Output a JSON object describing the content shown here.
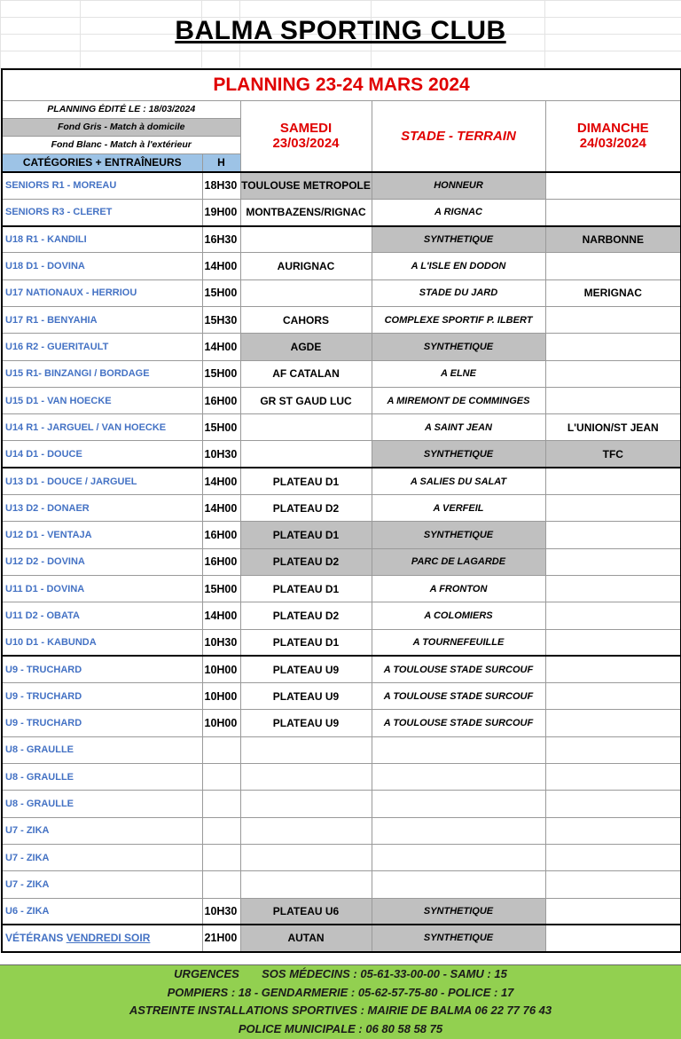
{
  "title": "BALMA SPORTING CLUB",
  "planning_title": "PLANNING 23-24 MARS 2024",
  "edited": "PLANNING ÉDITÉ LE : 18/03/2024",
  "legend_gray": "Fond Gris - Match à domicile",
  "legend_white": "Fond Blanc - Match à l'extérieur",
  "headers": {
    "categories": "CATÉGORIES + ENTRAÎNEURS",
    "time": "H",
    "samedi": "SAMEDI",
    "samedi_date": "23/03/2024",
    "stade": "STADE - TERRAIN",
    "dimanche": "DIMANCHE",
    "dimanche_date": "24/03/2024"
  },
  "colors": {
    "home_gray": "#c0c0c0",
    "header_blue": "#9dc3e6",
    "title_red": "#e00000",
    "category_blue": "#4472c4",
    "footer_green": "#92d050"
  },
  "groups": [
    [
      {
        "category": "SENIORS R1 - MOREAU",
        "time": "18H30",
        "samedi": "TOULOUSE METROPOLE",
        "stade": "HONNEUR",
        "dimanche": "",
        "shade": [
          "samedi",
          "stade"
        ]
      },
      {
        "category": "SENIORS R3 - CLERET",
        "time": "19H00",
        "samedi": "MONTBAZENS/RIGNAC",
        "stade": "A RIGNAC",
        "dimanche": "",
        "shade": []
      }
    ],
    [
      {
        "category": "U18 R1 - KANDILI",
        "time": "16H30",
        "samedi": "",
        "stade": "SYNTHETIQUE",
        "dimanche": "NARBONNE",
        "shade": [
          "stade",
          "dimanche"
        ]
      },
      {
        "category": "U18 D1 - DOVINA",
        "time": "14H00",
        "samedi": "AURIGNAC",
        "stade": "A L'ISLE EN DODON",
        "dimanche": "",
        "shade": []
      },
      {
        "category": "U17 NATIONAUX - HERRIOU",
        "time": "15H00",
        "samedi": "",
        "stade": "STADE DU JARD",
        "dimanche": "MERIGNAC",
        "shade": []
      },
      {
        "category": "U17 R1 - BENYAHIA",
        "time": "15H30",
        "samedi": "CAHORS",
        "stade": "COMPLEXE SPORTIF P. ILBERT",
        "dimanche": "",
        "shade": []
      },
      {
        "category": "U16 R2 - GUERITAULT",
        "time": "14H00",
        "samedi": "AGDE",
        "stade": "SYNTHETIQUE",
        "dimanche": "",
        "shade": [
          "samedi",
          "stade"
        ]
      },
      {
        "category": "U15 R1- BINZANGI / BORDAGE",
        "time": "15H00",
        "samedi": "AF CATALAN",
        "stade": "A ELNE",
        "dimanche": "",
        "shade": []
      },
      {
        "category": "U15 D1 - VAN HOECKE",
        "time": "16H00",
        "samedi": "GR ST GAUD LUC",
        "stade": "A MIREMONT DE COMMINGES",
        "dimanche": "",
        "shade": []
      },
      {
        "category": "U14 R1 - JARGUEL / VAN HOECKE",
        "time": "15H00",
        "samedi": "",
        "stade": "A SAINT JEAN",
        "dimanche": "L'UNION/ST JEAN",
        "shade": []
      },
      {
        "category": "U14 D1 - DOUCE",
        "time": "10H30",
        "samedi": "",
        "stade": "SYNTHETIQUE",
        "dimanche": "TFC",
        "shade": [
          "stade",
          "dimanche"
        ]
      }
    ],
    [
      {
        "category": "U13 D1 - DOUCE / JARGUEL",
        "time": "14H00",
        "samedi": "PLATEAU D1",
        "stade": "A SALIES DU SALAT",
        "dimanche": "",
        "shade": []
      },
      {
        "category": "U13 D2 - DONAER",
        "time": "14H00",
        "samedi": "PLATEAU D2",
        "stade": "A VERFEIL",
        "dimanche": "",
        "shade": []
      },
      {
        "category": "U12 D1 - VENTAJA",
        "time": "16H00",
        "samedi": "PLATEAU D1",
        "stade": "SYNTHETIQUE",
        "dimanche": "",
        "shade": [
          "samedi",
          "stade"
        ]
      },
      {
        "category": "U12 D2 - DOVINA",
        "time": "16H00",
        "samedi": "PLATEAU D2",
        "stade": "PARC DE LAGARDE",
        "dimanche": "",
        "shade": [
          "samedi",
          "stade"
        ]
      },
      {
        "category": "U11 D1 - DOVINA",
        "time": "15H00",
        "samedi": "PLATEAU D1",
        "stade": "A FRONTON",
        "dimanche": "",
        "shade": []
      },
      {
        "category": "U11 D2 - OBATA",
        "time": "14H00",
        "samedi": "PLATEAU D2",
        "stade": "A COLOMIERS",
        "dimanche": "",
        "shade": []
      },
      {
        "category": "U10 D1 - KABUNDA",
        "time": "10H30",
        "samedi": "PLATEAU D1",
        "stade": "A TOURNEFEUILLE",
        "dimanche": "",
        "shade": []
      }
    ],
    [
      {
        "category": "U9 - TRUCHARD",
        "time": "10H00",
        "samedi": "PLATEAU U9",
        "stade": "A TOULOUSE STADE SURCOUF",
        "dimanche": "",
        "shade": []
      },
      {
        "category": "U9 - TRUCHARD",
        "time": "10H00",
        "samedi": "PLATEAU U9",
        "stade": "A TOULOUSE STADE SURCOUF",
        "dimanche": "",
        "shade": []
      },
      {
        "category": "U9 - TRUCHARD",
        "time": "10H00",
        "samedi": "PLATEAU U9",
        "stade": "A TOULOUSE STADE SURCOUF",
        "dimanche": "",
        "shade": []
      },
      {
        "category": "U8 - GRAULLE",
        "time": "",
        "samedi": "",
        "stade": "",
        "dimanche": "",
        "shade": []
      },
      {
        "category": "U8 - GRAULLE",
        "time": "",
        "samedi": "",
        "stade": "",
        "dimanche": "",
        "shade": []
      },
      {
        "category": "U8 - GRAULLE",
        "time": "",
        "samedi": "",
        "stade": "",
        "dimanche": "",
        "shade": []
      },
      {
        "category": "U7 - ZIKA",
        "time": "",
        "samedi": "",
        "stade": "",
        "dimanche": "",
        "shade": []
      },
      {
        "category": "U7 - ZIKA",
        "time": "",
        "samedi": "",
        "stade": "",
        "dimanche": "",
        "shade": []
      },
      {
        "category": "U7 - ZIKA",
        "time": "",
        "samedi": "",
        "stade": "",
        "dimanche": "",
        "shade": []
      },
      {
        "category": "U6 - ZIKA",
        "time": "10H30",
        "samedi": "PLATEAU U6",
        "stade": "SYNTHETIQUE",
        "dimanche": "",
        "shade": [
          "samedi",
          "stade"
        ]
      }
    ]
  ],
  "veterans": {
    "category": "VÉTÉRANS",
    "link": "VENDREDI SOIR",
    "time": "21H00",
    "samedi": "AUTAN",
    "stade": "SYNTHETIQUE",
    "dimanche": "",
    "shade": [
      "samedi",
      "stade"
    ]
  },
  "footer": [
    "URGENCES       SOS MÉDECINS : 05-61-33-00-00 - SAMU : 15",
    "POMPIERS : 18 - GENDARMERIE : 05-62-57-75-80 - POLICE : 17",
    "ASTREINTE INSTALLATIONS SPORTIVES : MAIRIE DE BALMA 06 22 77 76 43",
    "POLICE MUNICIPALE : 06 80 58 58 75"
  ]
}
